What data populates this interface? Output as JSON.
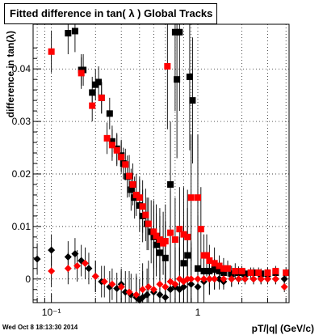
{
  "window": {
    "title": "Fitted difference in tan( λ )  Global Tracks",
    "timestamp": "Wed Oct  8 18:13:30 2014"
  },
  "colors": {
    "series_black": "#000000",
    "series_red": "#ff0000",
    "grid": "#000000",
    "frame": "#000000"
  },
  "chart_data": {
    "type": "scatter",
    "title": "Fitted difference in tan( λ )  Global Tracks",
    "xlabel": "pT/|q| (GeV/c)",
    "ylabel": "difference in tan(λ)",
    "x_scale": "log",
    "xlim": [
      0.075,
      4.2
    ],
    "ylim": [
      -0.0045,
      0.0485
    ],
    "x_tick_labels": [
      {
        "value": 0.1,
        "label": "10⁻¹"
      },
      {
        "value": 1,
        "label": "1"
      }
    ],
    "y_tick_labels": [
      {
        "value": 0,
        "label": "0"
      },
      {
        "value": 0.01,
        "label": "0.01"
      },
      {
        "value": 0.02,
        "label": "0.02"
      },
      {
        "value": 0.03,
        "label": "0.03"
      },
      {
        "value": 0.04,
        "label": "0.04"
      }
    ],
    "grid": true,
    "legend": "none",
    "series": [
      {
        "marker": "square",
        "color": "#000000",
        "points": [
          [
            0.13,
            0.0468,
            0.004
          ],
          [
            0.145,
            0.0472,
            0.004
          ],
          [
            0.16,
            0.0398,
            0.003
          ],
          [
            0.165,
            0.0398,
            0.003
          ],
          [
            0.19,
            0.0355,
            0.003
          ],
          [
            0.2,
            0.037,
            0.003
          ],
          [
            0.21,
            0.0375,
            0.003
          ],
          [
            0.22,
            0.0345,
            0.003
          ],
          [
            0.25,
            0.0315,
            0.003
          ],
          [
            0.26,
            0.0262,
            0.003
          ],
          [
            0.28,
            0.0248,
            0.003
          ],
          [
            0.3,
            0.0235,
            0.003
          ],
          [
            0.31,
            0.022,
            0.003
          ],
          [
            0.33,
            0.0195,
            0.004
          ],
          [
            0.35,
            0.017,
            0.004
          ],
          [
            0.37,
            0.0155,
            0.004
          ],
          [
            0.4,
            0.014,
            0.005
          ],
          [
            0.42,
            0.012,
            0.005
          ],
          [
            0.45,
            0.0105,
            0.005
          ],
          [
            0.48,
            0.009,
            0.006
          ],
          [
            0.5,
            0.008,
            0.006
          ],
          [
            0.52,
            0.0065,
            0.006
          ],
          [
            0.55,
            0.005,
            0.007
          ],
          [
            0.6,
            0.004,
            0.007
          ],
          [
            0.65,
            0.018,
            0.012
          ],
          [
            0.7,
            0.047,
            0.015
          ],
          [
            0.72,
            0.038,
            0.015
          ],
          [
            0.75,
            0.047,
            0.015
          ],
          [
            0.8,
            0.003,
            0.008
          ],
          [
            0.85,
            0.0045,
            0.009
          ],
          [
            0.88,
            0.0385,
            0.014
          ],
          [
            0.92,
            0.034,
            0.012
          ],
          [
            1.0,
            0.002,
            0.01
          ],
          [
            1.1,
            0.0015,
            0.004
          ],
          [
            1.2,
            0.0015,
            0.003
          ],
          [
            1.3,
            0.0018,
            0.002
          ],
          [
            1.4,
            0.0015,
            0.002
          ],
          [
            1.5,
            0.0012,
            0.0015
          ],
          [
            1.7,
            0.001,
            0.0015
          ],
          [
            1.9,
            0.0012,
            0.0012
          ],
          [
            2.1,
            0.001,
            0.001
          ],
          [
            2.4,
            0.0012,
            0.001
          ],
          [
            2.7,
            0.001,
            0.001
          ],
          [
            3.0,
            0.001,
            0.001
          ],
          [
            3.4,
            0.0012,
            0.001
          ]
        ]
      },
      {
        "marker": "square",
        "color": "#ff0000",
        "points": [
          [
            0.1,
            0.0433,
            0.004
          ],
          [
            0.16,
            0.0392,
            0.003
          ],
          [
            0.19,
            0.033,
            0.003
          ],
          [
            0.22,
            0.0345,
            0.003
          ],
          [
            0.24,
            0.0268,
            0.003
          ],
          [
            0.26,
            0.0255,
            0.003
          ],
          [
            0.28,
            0.0245,
            0.003
          ],
          [
            0.3,
            0.0232,
            0.003
          ],
          [
            0.32,
            0.0218,
            0.003
          ],
          [
            0.34,
            0.0196,
            0.004
          ],
          [
            0.36,
            0.018,
            0.004
          ],
          [
            0.38,
            0.016,
            0.004
          ],
          [
            0.4,
            0.0155,
            0.004
          ],
          [
            0.42,
            0.0138,
            0.005
          ],
          [
            0.44,
            0.0122,
            0.005
          ],
          [
            0.46,
            0.0105,
            0.005
          ],
          [
            0.5,
            0.009,
            0.006
          ],
          [
            0.52,
            0.0082,
            0.006
          ],
          [
            0.55,
            0.0075,
            0.006
          ],
          [
            0.58,
            0.0068,
            0.006
          ],
          [
            0.6,
            0.0072,
            0.007
          ],
          [
            0.62,
            0.0405,
            0.012
          ],
          [
            0.65,
            0.0088,
            0.008
          ],
          [
            0.7,
            0.0075,
            0.008
          ],
          [
            0.75,
            0.0095,
            0.008
          ],
          [
            0.8,
            0.0085,
            0.009
          ],
          [
            0.85,
            0.008,
            0.009
          ],
          [
            0.9,
            0.0155,
            0.012
          ],
          [
            1.0,
            0.0155,
            0.012
          ],
          [
            1.05,
            0.0095,
            0.008
          ],
          [
            1.1,
            0.0045,
            0.004
          ],
          [
            1.15,
            0.0045,
            0.004
          ],
          [
            1.2,
            0.0035,
            0.003
          ],
          [
            1.3,
            0.003,
            0.003
          ],
          [
            1.4,
            0.0025,
            0.002
          ],
          [
            1.5,
            0.002,
            0.002
          ],
          [
            1.6,
            0.002,
            0.0015
          ],
          [
            1.8,
            0.0015,
            0.0015
          ],
          [
            2.0,
            0.0015,
            0.001
          ],
          [
            2.3,
            0.0012,
            0.001
          ],
          [
            2.6,
            0.0012,
            0.001
          ],
          [
            3.0,
            0.0012,
            0.001
          ],
          [
            3.4,
            0.0015,
            0.001
          ],
          [
            4.0,
            0.0012,
            0.001
          ]
        ]
      },
      {
        "marker": "diamond",
        "color": "#000000",
        "points": [
          [
            0.08,
            0.0038,
            0.003
          ],
          [
            0.1,
            0.0055,
            0.003
          ],
          [
            0.13,
            0.0042,
            0.003
          ],
          [
            0.145,
            0.0048,
            0.003
          ],
          [
            0.16,
            0.0035,
            0.003
          ],
          [
            0.18,
            0.002,
            0.003
          ],
          [
            0.2,
            0.0005,
            0.003
          ],
          [
            0.22,
            -0.0005,
            0.003
          ],
          [
            0.25,
            -0.0015,
            0.003
          ],
          [
            0.28,
            -0.0018,
            0.003
          ],
          [
            0.3,
            -0.001,
            0.003
          ],
          [
            0.32,
            -0.0025,
            0.004
          ],
          [
            0.35,
            -0.003,
            0.004
          ],
          [
            0.38,
            -0.0035,
            0.004
          ],
          [
            0.4,
            -0.004,
            0.004
          ],
          [
            0.42,
            -0.0035,
            0.005
          ],
          [
            0.45,
            -0.003,
            0.005
          ],
          [
            0.5,
            -0.0025,
            0.006
          ],
          [
            0.55,
            -0.003,
            0.006
          ],
          [
            0.6,
            -0.0035,
            0.006
          ],
          [
            0.65,
            -0.002,
            0.007
          ],
          [
            0.7,
            -0.0015,
            0.007
          ],
          [
            0.75,
            -0.002,
            0.008
          ],
          [
            0.8,
            -0.0015,
            0.008
          ],
          [
            0.9,
            -0.001,
            0.008
          ],
          [
            1.0,
            -0.0015,
            0.006
          ],
          [
            1.1,
            -0.0005,
            0.004
          ],
          [
            1.2,
            0.0,
            0.003
          ],
          [
            1.3,
            0.0,
            0.002
          ],
          [
            1.4,
            0.0,
            0.002
          ],
          [
            1.5,
            -0.0005,
            0.0015
          ],
          [
            1.7,
            0.0,
            0.0015
          ],
          [
            1.9,
            0.0,
            0.001
          ],
          [
            2.1,
            0.0,
            0.001
          ],
          [
            2.4,
            0.0,
            0.001
          ],
          [
            2.7,
            0.0,
            0.001
          ],
          [
            3.0,
            0.0,
            0.001
          ],
          [
            3.4,
            0.0,
            0.001
          ],
          [
            3.9,
            0.0,
            0.001
          ]
        ]
      },
      {
        "marker": "diamond",
        "color": "#ff0000",
        "points": [
          [
            0.1,
            0.0015,
            0.003
          ],
          [
            0.13,
            0.002,
            0.003
          ],
          [
            0.15,
            0.0025,
            0.003
          ],
          [
            0.17,
            0.003,
            0.003
          ],
          [
            0.2,
            0.0005,
            0.003
          ],
          [
            0.23,
            -0.0005,
            0.003
          ],
          [
            0.26,
            -0.001,
            0.003
          ],
          [
            0.3,
            -0.0015,
            0.003
          ],
          [
            0.34,
            -0.0025,
            0.004
          ],
          [
            0.38,
            -0.003,
            0.004
          ],
          [
            0.42,
            -0.002,
            0.005
          ],
          [
            0.46,
            -0.0015,
            0.005
          ],
          [
            0.5,
            -0.002,
            0.006
          ],
          [
            0.55,
            -0.001,
            0.006
          ],
          [
            0.6,
            -0.0015,
            0.006
          ],
          [
            0.65,
            -0.0005,
            0.007
          ],
          [
            0.7,
            -0.001,
            0.007
          ],
          [
            0.75,
            0.0,
            0.008
          ],
          [
            0.8,
            -0.0005,
            0.008
          ],
          [
            0.85,
            0.0,
            0.008
          ],
          [
            0.9,
            0.0,
            0.006
          ],
          [
            1.0,
            0.0,
            0.005
          ],
          [
            1.1,
            0.0,
            0.004
          ],
          [
            1.2,
            0.0,
            0.003
          ],
          [
            1.3,
            0.0,
            0.002
          ],
          [
            1.5,
            0.0,
            0.0015
          ],
          [
            1.7,
            0.0,
            0.0015
          ],
          [
            1.9,
            0.0,
            0.001
          ],
          [
            2.1,
            0.0,
            0.001
          ],
          [
            2.4,
            0.0,
            0.001
          ],
          [
            2.7,
            0.0,
            0.001
          ],
          [
            3.0,
            0.0,
            0.001
          ],
          [
            3.4,
            0.0,
            0.001
          ],
          [
            3.9,
            -0.0015,
            0.001
          ]
        ]
      }
    ]
  }
}
